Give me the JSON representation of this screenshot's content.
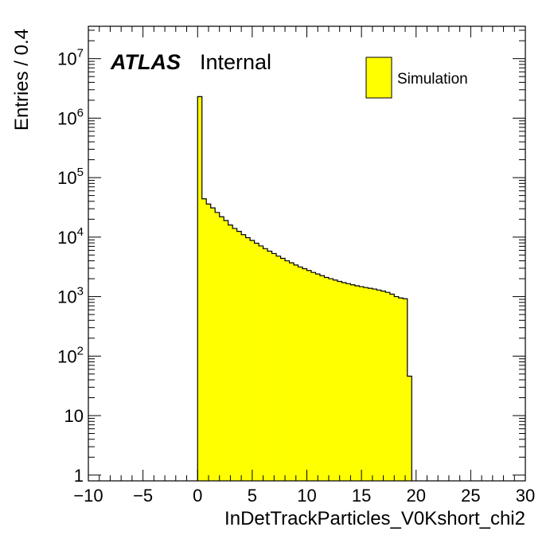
{
  "chart_data": {
    "type": "bar",
    "style": "histogram",
    "experiment": "ATLAS",
    "label": "Internal",
    "xlabel": "InDetTrackParticles_V0Kshort_chi2",
    "ylabel": "Entries / 0.4",
    "xlim": [
      -10,
      30
    ],
    "ylim": [
      0.8,
      35000000
    ],
    "yscale": "log",
    "bin_width": 0.4,
    "x_ticks": [
      "−10",
      "−5",
      "0",
      "5",
      "10",
      "15",
      "20",
      "25",
      "30"
    ],
    "x_tick_values": [
      -10,
      -5,
      0,
      5,
      10,
      15,
      20,
      25,
      30
    ],
    "y_ticks": [
      {
        "value": 1,
        "base": "1",
        "exp": ""
      },
      {
        "value": 10,
        "base": "10",
        "exp": ""
      },
      {
        "value": 100,
        "base": "10",
        "exp": "2"
      },
      {
        "value": 1000,
        "base": "10",
        "exp": "3"
      },
      {
        "value": 10000,
        "base": "10",
        "exp": "4"
      },
      {
        "value": 100000,
        "base": "10",
        "exp": "5"
      },
      {
        "value": 1000000,
        "base": "10",
        "exp": "6"
      },
      {
        "value": 10000000,
        "base": "10",
        "exp": "7"
      }
    ],
    "fill_color": "#ffff00",
    "line_color": "#000000",
    "legend": {
      "entries": [
        "Simulation"
      ],
      "position": "top-right"
    },
    "series": [
      {
        "name": "Simulation",
        "x_start": 0,
        "values": [
          2300000,
          44000,
          36000,
          31000,
          26000,
          22000,
          19000,
          16000,
          14000,
          12500,
          11000,
          9800,
          8800,
          7900,
          7100,
          6400,
          5800,
          5300,
          4800,
          4400,
          4000,
          3700,
          3400,
          3150,
          2950,
          2750,
          2550,
          2400,
          2250,
          2100,
          2000,
          1900,
          1800,
          1720,
          1650,
          1580,
          1520,
          1470,
          1420,
          1380,
          1340,
          1290,
          1240,
          1180,
          1100,
          1000,
          950,
          920,
          46
        ]
      }
    ]
  }
}
